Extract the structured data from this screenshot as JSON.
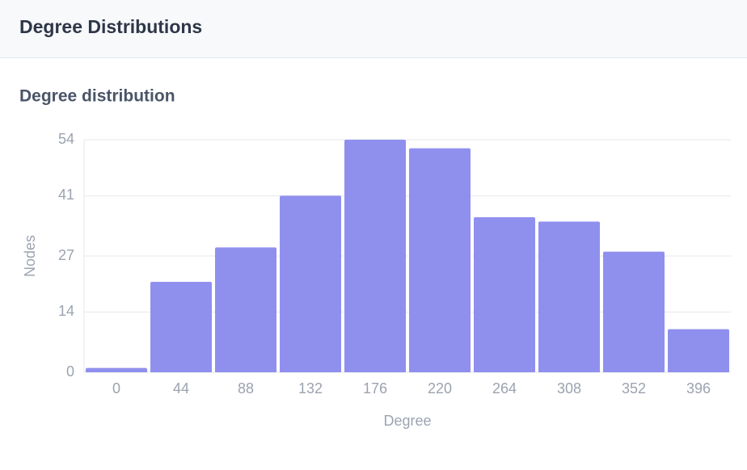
{
  "header": {
    "title": "Degree Distributions"
  },
  "chart_data": {
    "type": "bar",
    "title": "Degree distribution",
    "x_label": "Degree",
    "y_label": "Nodes",
    "categories": [
      "0",
      "44",
      "88",
      "132",
      "176",
      "220",
      "264",
      "308",
      "352",
      "396"
    ],
    "values": [
      1,
      21,
      29,
      41,
      54,
      52,
      36,
      35,
      28,
      10
    ],
    "color": "#8f90ee",
    "ylim": [
      0,
      54
    ],
    "yticks": [
      0,
      14,
      27,
      41,
      54
    ],
    "grid": true
  }
}
